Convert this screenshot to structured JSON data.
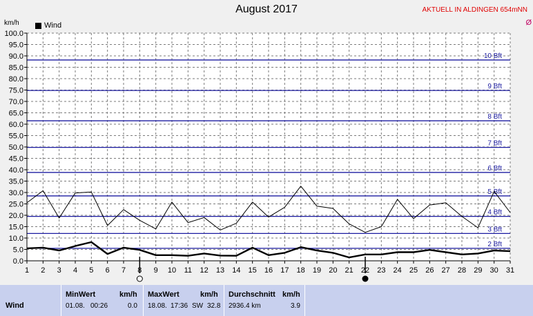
{
  "header": {
    "title": "August 2017",
    "station": "AKTUELL IN ALDINGEN 654mNN",
    "unit": "km/h",
    "edge_mark": "Ø"
  },
  "legend": {
    "label": "Wind"
  },
  "chart_data": {
    "type": "line",
    "title": "August 2017",
    "ylabel": "km/h",
    "ylim": [
      0,
      100
    ],
    "y_ticks": [
      "0.0",
      "5.0",
      "10.0",
      "15.0",
      "20.0",
      "25.0",
      "30.0",
      "35.0",
      "40.0",
      "45.0",
      "50.0",
      "55.0",
      "60.0",
      "65.0",
      "70.0",
      "75.0",
      "80.0",
      "85.0",
      "90.0",
      "95.0",
      "100.0"
    ],
    "x": [
      1,
      2,
      3,
      4,
      5,
      6,
      7,
      8,
      9,
      10,
      11,
      12,
      13,
      14,
      15,
      16,
      17,
      18,
      19,
      20,
      21,
      22,
      23,
      24,
      25,
      26,
      27,
      28,
      29,
      30,
      31
    ],
    "x_ticks": [
      "1",
      "2",
      "3",
      "4",
      "5",
      "6",
      "7",
      "8",
      "9",
      "10",
      "11",
      "12",
      "13",
      "14",
      "15",
      "16",
      "17",
      "18",
      "19",
      "20",
      "21",
      "22",
      "23",
      "24",
      "25",
      "26",
      "27",
      "28",
      "29",
      "30",
      "31"
    ],
    "grid": true,
    "series": [
      {
        "name": "Wind",
        "color": "#000000",
        "width": "thick",
        "values": [
          5.5,
          5.8,
          4.5,
          6.5,
          8.2,
          3.0,
          5.8,
          4.8,
          2.5,
          2.5,
          2.2,
          3.2,
          2.3,
          2.2,
          5.8,
          2.5,
          3.5,
          6.0,
          4.5,
          3.5,
          1.5,
          2.8,
          2.8,
          3.8,
          3.8,
          4.8,
          3.8,
          2.8,
          3.2,
          4.5,
          4.2
        ]
      },
      {
        "color": "#000000",
        "width": "thin",
        "values": [
          25.5,
          30.8,
          18.8,
          29.8,
          30.2,
          15.5,
          22.5,
          17.8,
          14.0,
          25.8,
          16.8,
          19.0,
          13.5,
          16.5,
          25.8,
          19.2,
          23.5,
          32.8,
          24.0,
          23.0,
          16.2,
          12.5,
          15.0,
          27.0,
          18.5,
          24.5,
          25.5,
          19.5,
          14.5,
          30.5,
          21.2
        ]
      }
    ],
    "beaufort": [
      {
        "label": "2 Bft",
        "value": 5.5
      },
      {
        "label": "3 Bft",
        "value": 12.0
      },
      {
        "label": "4 Bft",
        "value": 19.5
      },
      {
        "label": "5 Bft",
        "value": 28.5
      },
      {
        "label": "6 Bft",
        "value": 38.8
      },
      {
        "label": "7 Bft",
        "value": 49.8
      },
      {
        "label": "8 Bft",
        "value": 61.5
      },
      {
        "label": "9 Bft",
        "value": 74.8
      },
      {
        "label": "10 Bft",
        "value": 88.2
      }
    ],
    "beaufort_color": "#1a1aa0",
    "moon_markers": [
      {
        "day": 8,
        "phase": "full"
      },
      {
        "day": 22,
        "phase": "new"
      }
    ]
  },
  "stats": {
    "row_label": "Wind",
    "min": {
      "header": "MinWert",
      "unit": "km/h",
      "date": "01.08.",
      "time": "00:26",
      "value": "0.0"
    },
    "max": {
      "header": "MaxWert",
      "unit": "km/h",
      "date": "18.08.",
      "time": "17:36",
      "dir": "SW",
      "value": "32.8"
    },
    "avg": {
      "header": "Durchschnitt",
      "unit": "km/h",
      "distance": "2936.4 km",
      "value": "3.9"
    }
  }
}
